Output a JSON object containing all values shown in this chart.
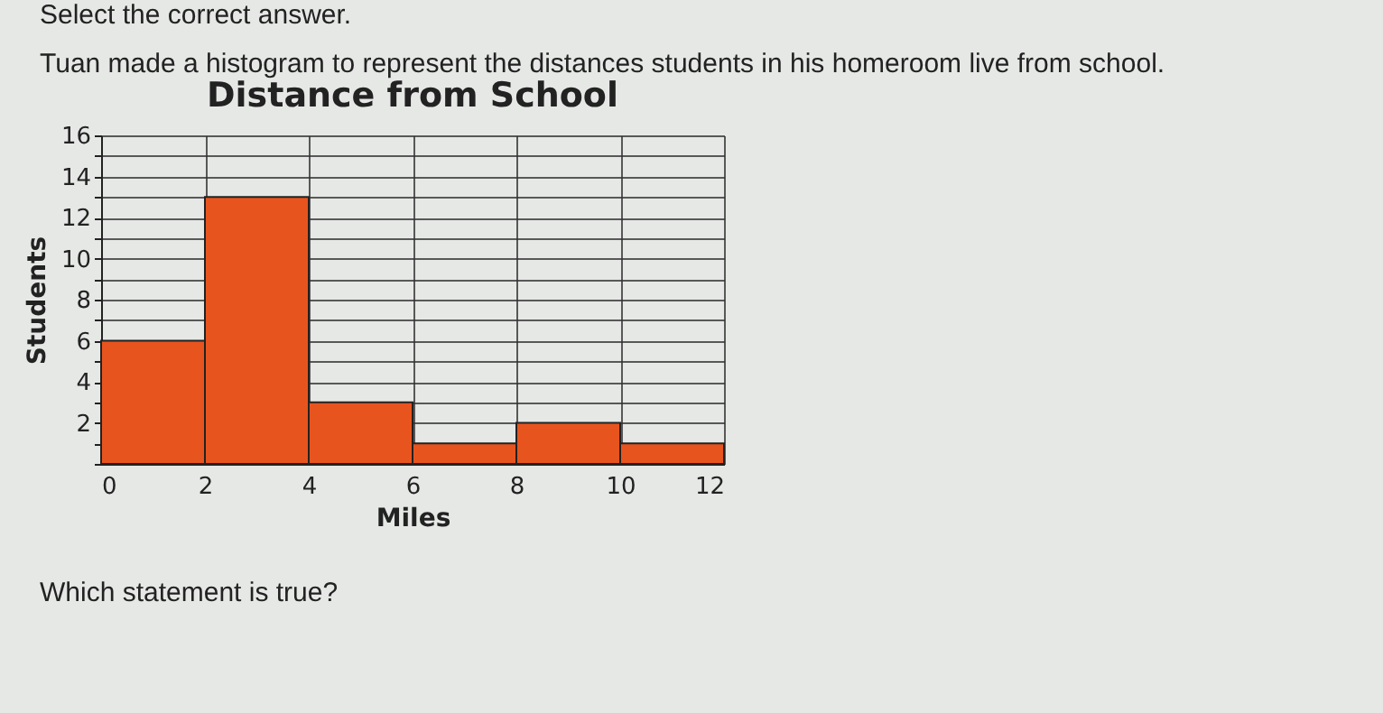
{
  "chart_data": {
    "type": "histogram",
    "title": "Distance from School",
    "xlabel": "Miles",
    "ylabel": "Students",
    "annotations": [
      "Select the correct answer.",
      "Tuan made a histogram to represent the distances students in his homeroom live from school.",
      "Which statement is true?"
    ],
    "bins": [
      0,
      2,
      4,
      6,
      8,
      10,
      12
    ],
    "values": [
      6,
      13,
      3,
      1,
      2,
      1
    ],
    "color": "#e8541e",
    "xlim": [
      0,
      12
    ],
    "xticks": [
      0,
      2,
      4,
      6,
      8,
      10,
      12
    ],
    "ylim": [
      0,
      16
    ],
    "yticks": [
      {
        "value": 0,
        "label": null
      },
      {
        "value": 1,
        "label": null
      },
      2,
      {
        "value": 3,
        "label": null
      },
      4,
      {
        "value": 5,
        "label": null
      },
      6,
      {
        "value": 7,
        "label": null
      },
      8,
      {
        "value": 9,
        "label": null
      },
      10,
      {
        "value": 11,
        "label": null
      },
      12,
      {
        "value": 13,
        "label": null
      },
      14,
      {
        "value": 15,
        "label": null
      },
      16
    ],
    "grid": true
  }
}
